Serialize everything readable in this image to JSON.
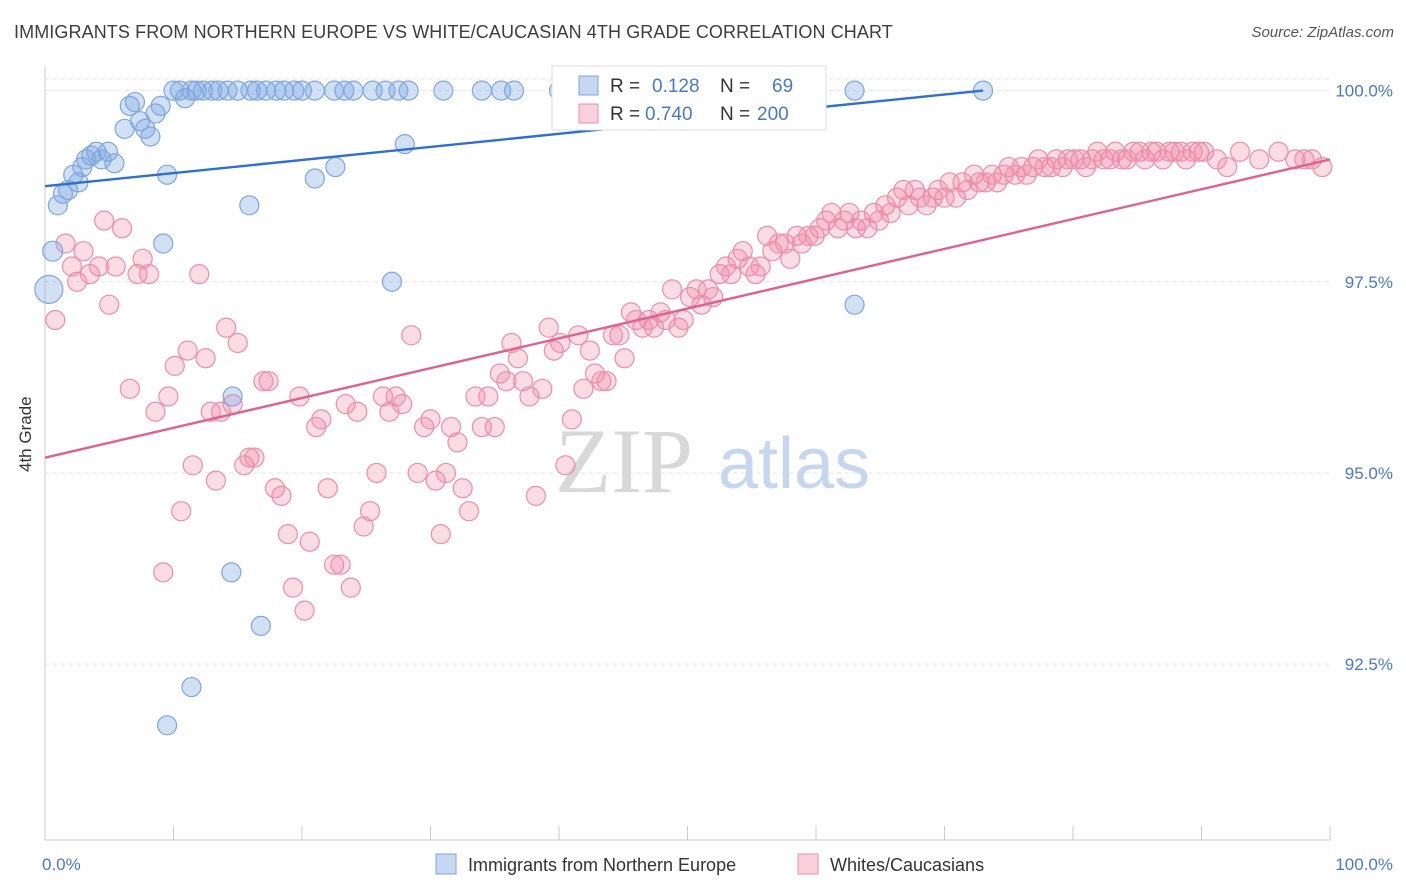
{
  "title": "IMMIGRANTS FROM NORTHERN EUROPE VS WHITE/CAUCASIAN 4TH GRADE CORRELATION CHART",
  "source": "Source: ZipAtlas.com",
  "watermark": {
    "part1": "ZIP",
    "part2": "atlas"
  },
  "legend": {
    "r_label": "R =",
    "n_label": "N =",
    "rows": [
      {
        "r": "0.128",
        "n": "69",
        "color": "#7ea6e0"
      },
      {
        "r": "0.740",
        "n": "200",
        "color": "#f08caa"
      }
    ]
  },
  "chart_data": {
    "type": "scatter",
    "title": "IMMIGRANTS FROM NORTHERN EUROPE VS WHITE/CAUCASIAN 4TH GRADE CORRELATION CHART",
    "xlabel": "",
    "ylabel": "4th Grade",
    "xlim": [
      0,
      100
    ],
    "ylim": [
      90.2,
      100.4
    ],
    "x_tick_labels": [
      "0.0%",
      "100.0%"
    ],
    "y_ticks": [
      {
        "value": 100.0,
        "label": "100.0%"
      },
      {
        "value": 97.5,
        "label": "97.5%"
      },
      {
        "value": 95.0,
        "label": "95.0%"
      },
      {
        "value": 92.5,
        "label": "92.5%"
      }
    ],
    "grid": true,
    "legend_position": "bottom",
    "series": [
      {
        "name": "Immigrants from Northern Europe",
        "color": "#7ea6e0",
        "fill": "rgba(126,166,224,0.35)",
        "trend": {
          "x": [
            0,
            73
          ],
          "y": [
            98.75,
            100.0
          ]
        },
        "points": [
          [
            0.3,
            97.4
          ],
          [
            0.6,
            97.9
          ],
          [
            1.0,
            98.5
          ],
          [
            1.4,
            98.65
          ],
          [
            1.8,
            98.7
          ],
          [
            2.2,
            98.9
          ],
          [
            2.6,
            98.8
          ],
          [
            2.9,
            99.0
          ],
          [
            3.2,
            99.1
          ],
          [
            3.6,
            99.15
          ],
          [
            4.0,
            99.2
          ],
          [
            4.4,
            99.1
          ],
          [
            4.9,
            99.2
          ],
          [
            5.4,
            99.05
          ],
          [
            6.2,
            99.5
          ],
          [
            6.6,
            99.8
          ],
          [
            7.0,
            99.85
          ],
          [
            7.4,
            99.6
          ],
          [
            7.8,
            99.5
          ],
          [
            8.2,
            99.4
          ],
          [
            8.6,
            99.7
          ],
          [
            9.0,
            99.8
          ],
          [
            9.5,
            98.9
          ],
          [
            10.0,
            100.0
          ],
          [
            10.5,
            100.0
          ],
          [
            10.9,
            99.9
          ],
          [
            11.4,
            100.0
          ],
          [
            11.8,
            100.0
          ],
          [
            12.3,
            100.0
          ],
          [
            13.0,
            100.0
          ],
          [
            13.5,
            100.0
          ],
          [
            14.2,
            100.0
          ],
          [
            15.0,
            100.0
          ],
          [
            16.0,
            100.0
          ],
          [
            16.5,
            100.0
          ],
          [
            17.2,
            100.0
          ],
          [
            18.0,
            100.0
          ],
          [
            18.6,
            100.0
          ],
          [
            19.4,
            100.0
          ],
          [
            20.0,
            100.0
          ],
          [
            21.0,
            100.0
          ],
          [
            22.5,
            100.0
          ],
          [
            23.3,
            100.0
          ],
          [
            24.0,
            100.0
          ],
          [
            25.5,
            100.0
          ],
          [
            26.5,
            100.0
          ],
          [
            27.5,
            100.0
          ],
          [
            28.3,
            100.0
          ],
          [
            31.0,
            100.0
          ],
          [
            34.0,
            100.0
          ],
          [
            35.5,
            100.0
          ],
          [
            36.5,
            100.0
          ],
          [
            40.0,
            100.0
          ],
          [
            46.0,
            100.0
          ],
          [
            56.0,
            100.0
          ],
          [
            63.0,
            100.0
          ],
          [
            73.0,
            100.0
          ],
          [
            28.0,
            99.3
          ],
          [
            15.9,
            98.5
          ],
          [
            21.0,
            98.85
          ],
          [
            22.6,
            99.0
          ],
          [
            27.0,
            97.5
          ],
          [
            9.2,
            98.0
          ],
          [
            14.6,
            96.0
          ],
          [
            14.5,
            93.7
          ],
          [
            16.8,
            93.0
          ],
          [
            11.4,
            92.2
          ],
          [
            9.5,
            91.7
          ],
          [
            63.0,
            97.2
          ]
        ],
        "sizes": {
          "0": 28,
          "1": 20
        }
      },
      {
        "name": "Whites/Caucasians",
        "color": "#f08caa",
        "fill": "rgba(240,140,170,0.3)",
        "trend": {
          "x": [
            0,
            100
          ],
          "y": [
            95.2,
            99.1
          ]
        },
        "points": [
          [
            0.8,
            97.0
          ],
          [
            1.6,
            98.0
          ],
          [
            2.1,
            97.7
          ],
          [
            2.5,
            97.5
          ],
          [
            3.0,
            97.9
          ],
          [
            3.5,
            97.6
          ],
          [
            4.2,
            97.7
          ],
          [
            4.6,
            98.3
          ],
          [
            5.0,
            97.2
          ],
          [
            5.5,
            97.7
          ],
          [
            6.0,
            98.2
          ],
          [
            6.6,
            96.1
          ],
          [
            7.2,
            97.6
          ],
          [
            7.6,
            97.8
          ],
          [
            8.1,
            97.6
          ],
          [
            8.6,
            95.8
          ],
          [
            9.2,
            93.7
          ],
          [
            9.6,
            96.0
          ],
          [
            10.1,
            96.4
          ],
          [
            10.6,
            94.5
          ],
          [
            11.1,
            96.6
          ],
          [
            11.5,
            95.1
          ],
          [
            12.0,
            97.6
          ],
          [
            12.5,
            96.5
          ],
          [
            12.9,
            95.8
          ],
          [
            13.3,
            94.9
          ],
          [
            13.7,
            95.8
          ],
          [
            14.1,
            96.9
          ],
          [
            14.6,
            95.9
          ],
          [
            15.0,
            96.7
          ],
          [
            15.5,
            95.1
          ],
          [
            15.9,
            95.2
          ],
          [
            16.3,
            95.2
          ],
          [
            17.0,
            96.2
          ],
          [
            17.4,
            96.2
          ],
          [
            17.9,
            94.8
          ],
          [
            18.4,
            94.7
          ],
          [
            18.9,
            94.2
          ],
          [
            19.3,
            93.5
          ],
          [
            19.8,
            96.0
          ],
          [
            20.2,
            93.2
          ],
          [
            20.6,
            94.1
          ],
          [
            21.1,
            95.6
          ],
          [
            21.5,
            95.7
          ],
          [
            22.0,
            94.8
          ],
          [
            22.5,
            93.8
          ],
          [
            23.0,
            93.8
          ],
          [
            23.4,
            95.9
          ],
          [
            23.8,
            93.5
          ],
          [
            24.3,
            95.8
          ],
          [
            24.8,
            94.3
          ],
          [
            25.3,
            94.5
          ],
          [
            25.8,
            95.0
          ],
          [
            26.3,
            96.0
          ],
          [
            26.8,
            95.8
          ],
          [
            27.3,
            96.0
          ],
          [
            27.8,
            95.9
          ],
          [
            28.5,
            96.8
          ],
          [
            29.0,
            95.0
          ],
          [
            29.5,
            95.6
          ],
          [
            30.0,
            95.7
          ],
          [
            30.4,
            94.9
          ],
          [
            30.8,
            94.2
          ],
          [
            31.2,
            95.0
          ],
          [
            31.6,
            95.6
          ],
          [
            32.1,
            95.4
          ],
          [
            32.5,
            94.8
          ],
          [
            33.0,
            94.5
          ],
          [
            33.5,
            96.0
          ],
          [
            34.0,
            95.6
          ],
          [
            34.5,
            96.0
          ],
          [
            35.0,
            95.6
          ],
          [
            35.4,
            96.3
          ],
          [
            35.9,
            96.2
          ],
          [
            36.3,
            96.7
          ],
          [
            36.8,
            96.5
          ],
          [
            37.2,
            96.2
          ],
          [
            37.7,
            96.0
          ],
          [
            38.2,
            94.7
          ],
          [
            38.7,
            96.1
          ],
          [
            39.2,
            96.9
          ],
          [
            39.6,
            96.6
          ],
          [
            40.1,
            96.7
          ],
          [
            40.5,
            95.1
          ],
          [
            41.0,
            95.7
          ],
          [
            41.5,
            96.8
          ],
          [
            41.9,
            96.1
          ],
          [
            42.4,
            96.6
          ],
          [
            42.8,
            96.3
          ],
          [
            43.3,
            96.2
          ],
          [
            43.7,
            96.2
          ],
          [
            44.2,
            96.8
          ],
          [
            44.7,
            96.8
          ],
          [
            45.1,
            96.5
          ],
          [
            45.6,
            97.1
          ],
          [
            46.0,
            97.0
          ],
          [
            46.5,
            96.9
          ],
          [
            47.0,
            97.0
          ],
          [
            47.4,
            96.9
          ],
          [
            47.9,
            97.1
          ],
          [
            48.3,
            97.0
          ],
          [
            48.8,
            97.4
          ],
          [
            49.3,
            96.9
          ],
          [
            49.7,
            97.0
          ],
          [
            50.2,
            97.3
          ],
          [
            50.7,
            97.4
          ],
          [
            51.1,
            97.2
          ],
          [
            51.6,
            97.4
          ],
          [
            52.0,
            97.3
          ],
          [
            52.5,
            97.6
          ],
          [
            53.0,
            97.7
          ],
          [
            53.4,
            97.6
          ],
          [
            53.9,
            97.8
          ],
          [
            54.3,
            97.9
          ],
          [
            54.8,
            97.7
          ],
          [
            55.3,
            97.6
          ],
          [
            55.7,
            97.7
          ],
          [
            56.2,
            98.1
          ],
          [
            56.6,
            97.9
          ],
          [
            57.1,
            98.0
          ],
          [
            57.6,
            98.0
          ],
          [
            58.0,
            97.8
          ],
          [
            58.5,
            98.1
          ],
          [
            58.9,
            98.0
          ],
          [
            59.4,
            98.1
          ],
          [
            59.9,
            98.1
          ],
          [
            60.3,
            98.2
          ],
          [
            60.8,
            98.3
          ],
          [
            61.2,
            98.4
          ],
          [
            61.7,
            98.2
          ],
          [
            62.2,
            98.3
          ],
          [
            62.6,
            98.4
          ],
          [
            63.1,
            98.2
          ],
          [
            63.5,
            98.3
          ],
          [
            64.0,
            98.2
          ],
          [
            64.5,
            98.4
          ],
          [
            64.9,
            98.3
          ],
          [
            65.4,
            98.5
          ],
          [
            65.8,
            98.4
          ],
          [
            66.3,
            98.6
          ],
          [
            66.8,
            98.7
          ],
          [
            67.2,
            98.5
          ],
          [
            67.7,
            98.7
          ],
          [
            68.1,
            98.6
          ],
          [
            68.6,
            98.5
          ],
          [
            69.1,
            98.6
          ],
          [
            69.5,
            98.7
          ],
          [
            70.0,
            98.6
          ],
          [
            70.4,
            98.8
          ],
          [
            70.9,
            98.6
          ],
          [
            71.4,
            98.8
          ],
          [
            71.8,
            98.7
          ],
          [
            72.3,
            98.9
          ],
          [
            72.7,
            98.8
          ],
          [
            73.2,
            98.8
          ],
          [
            73.7,
            98.9
          ],
          [
            74.1,
            98.8
          ],
          [
            74.6,
            98.9
          ],
          [
            75.0,
            99.0
          ],
          [
            75.5,
            98.9
          ],
          [
            76.0,
            99.0
          ],
          [
            76.4,
            98.9
          ],
          [
            76.9,
            99.0
          ],
          [
            77.3,
            99.1
          ],
          [
            77.8,
            99.0
          ],
          [
            78.3,
            99.0
          ],
          [
            78.7,
            99.1
          ],
          [
            79.2,
            99.0
          ],
          [
            79.6,
            99.1
          ],
          [
            80.1,
            99.1
          ],
          [
            80.6,
            99.1
          ],
          [
            81.0,
            99.0
          ],
          [
            81.5,
            99.1
          ],
          [
            81.9,
            99.2
          ],
          [
            82.4,
            99.1
          ],
          [
            82.9,
            99.1
          ],
          [
            83.3,
            99.2
          ],
          [
            83.8,
            99.1
          ],
          [
            84.2,
            99.1
          ],
          [
            84.7,
            99.2
          ],
          [
            85.2,
            99.2
          ],
          [
            85.6,
            99.1
          ],
          [
            86.1,
            99.2
          ],
          [
            86.5,
            99.2
          ],
          [
            87.0,
            99.1
          ],
          [
            87.5,
            99.2
          ],
          [
            87.9,
            99.2
          ],
          [
            88.4,
            99.2
          ],
          [
            88.8,
            99.1
          ],
          [
            89.3,
            99.2
          ],
          [
            89.8,
            99.2
          ],
          [
            90.2,
            99.2
          ],
          [
            91.2,
            99.1
          ],
          [
            92.0,
            99.0
          ],
          [
            93.0,
            99.2
          ],
          [
            94.5,
            99.1
          ],
          [
            96.0,
            99.2
          ],
          [
            97.3,
            99.1
          ],
          [
            98.0,
            99.1
          ],
          [
            98.6,
            99.1
          ],
          [
            99.4,
            99.0
          ]
        ],
        "sizes": {}
      }
    ]
  }
}
